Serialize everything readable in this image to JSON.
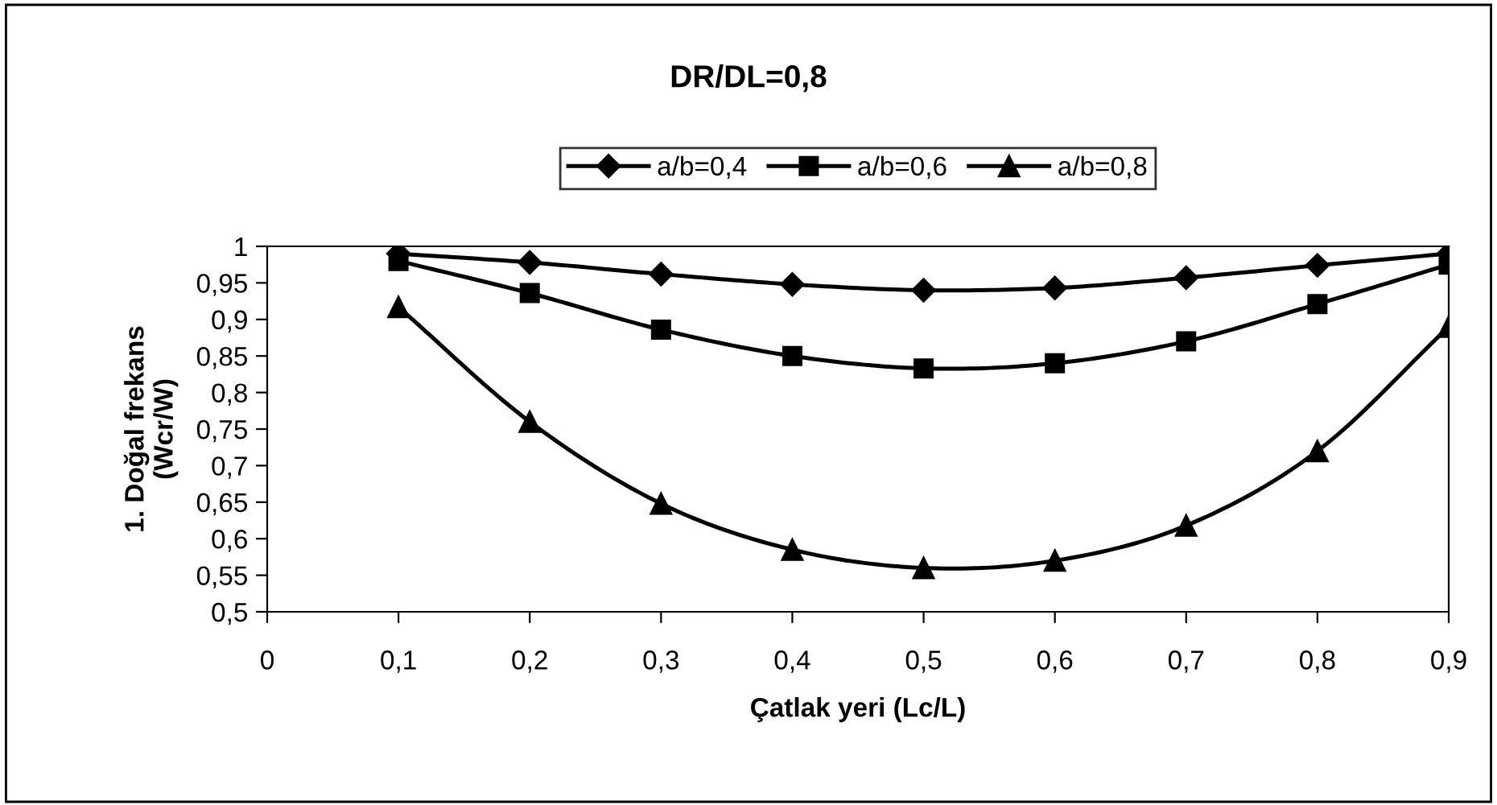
{
  "chart_data": {
    "type": "line",
    "title": "DR/DL=0,8",
    "xlabel": "Çatlak yeri (Lc/L)",
    "ylabel": "1. Doğal frekans\n(Wcr/W)",
    "x": [
      0.1,
      0.2,
      0.3,
      0.4,
      0.5,
      0.6,
      0.7,
      0.8,
      0.9
    ],
    "series": [
      {
        "name": "a/b=0,4",
        "color": "#000000",
        "marker": "diamond",
        "values": [
          0.99,
          0.978,
          0.962,
          0.948,
          0.94,
          0.943,
          0.957,
          0.974,
          0.99
        ]
      },
      {
        "name": "a/b=0,6",
        "color": "#000000",
        "marker": "square",
        "values": [
          0.98,
          0.936,
          0.886,
          0.85,
          0.833,
          0.84,
          0.87,
          0.921,
          0.975
        ]
      },
      {
        "name": "a/b=0,8",
        "color": "#000000",
        "marker": "triangle",
        "values": [
          0.917,
          0.76,
          0.648,
          0.585,
          0.56,
          0.57,
          0.618,
          0.72,
          0.89
        ]
      }
    ],
    "xlim": [
      0,
      0.9
    ],
    "ylim": [
      0.5,
      1
    ],
    "xticks": [
      0,
      {
        "value": 0.1,
        "label": "0,1"
      },
      {
        "value": 0.2,
        "label": "0,2"
      },
      {
        "value": 0.3,
        "label": "0,3"
      },
      {
        "value": 0.4,
        "label": "0,4"
      },
      {
        "value": 0.5,
        "label": "0,5"
      },
      {
        "value": 0.6,
        "label": "0,6"
      },
      {
        "value": 0.7,
        "label": "0,7"
      },
      {
        "value": 0.8,
        "label": "0,8"
      },
      {
        "value": 0.9,
        "label": "0,9"
      }
    ],
    "yticks": [
      {
        "value": 0.5,
        "label": "0,5"
      },
      {
        "value": 0.55,
        "label": "0,55"
      },
      {
        "value": 0.6,
        "label": "0,6"
      },
      {
        "value": 0.65,
        "label": "0,65"
      },
      {
        "value": 0.7,
        "label": "0,7"
      },
      {
        "value": 0.75,
        "label": "0,75"
      },
      {
        "value": 0.8,
        "label": "0,8"
      },
      {
        "value": 0.85,
        "label": "0,85"
      },
      {
        "value": 0.9,
        "label": "0,9"
      },
      {
        "value": 0.95,
        "label": "0,95"
      },
      1
    ],
    "grid": false,
    "legend": "top",
    "line_style": "solid"
  }
}
